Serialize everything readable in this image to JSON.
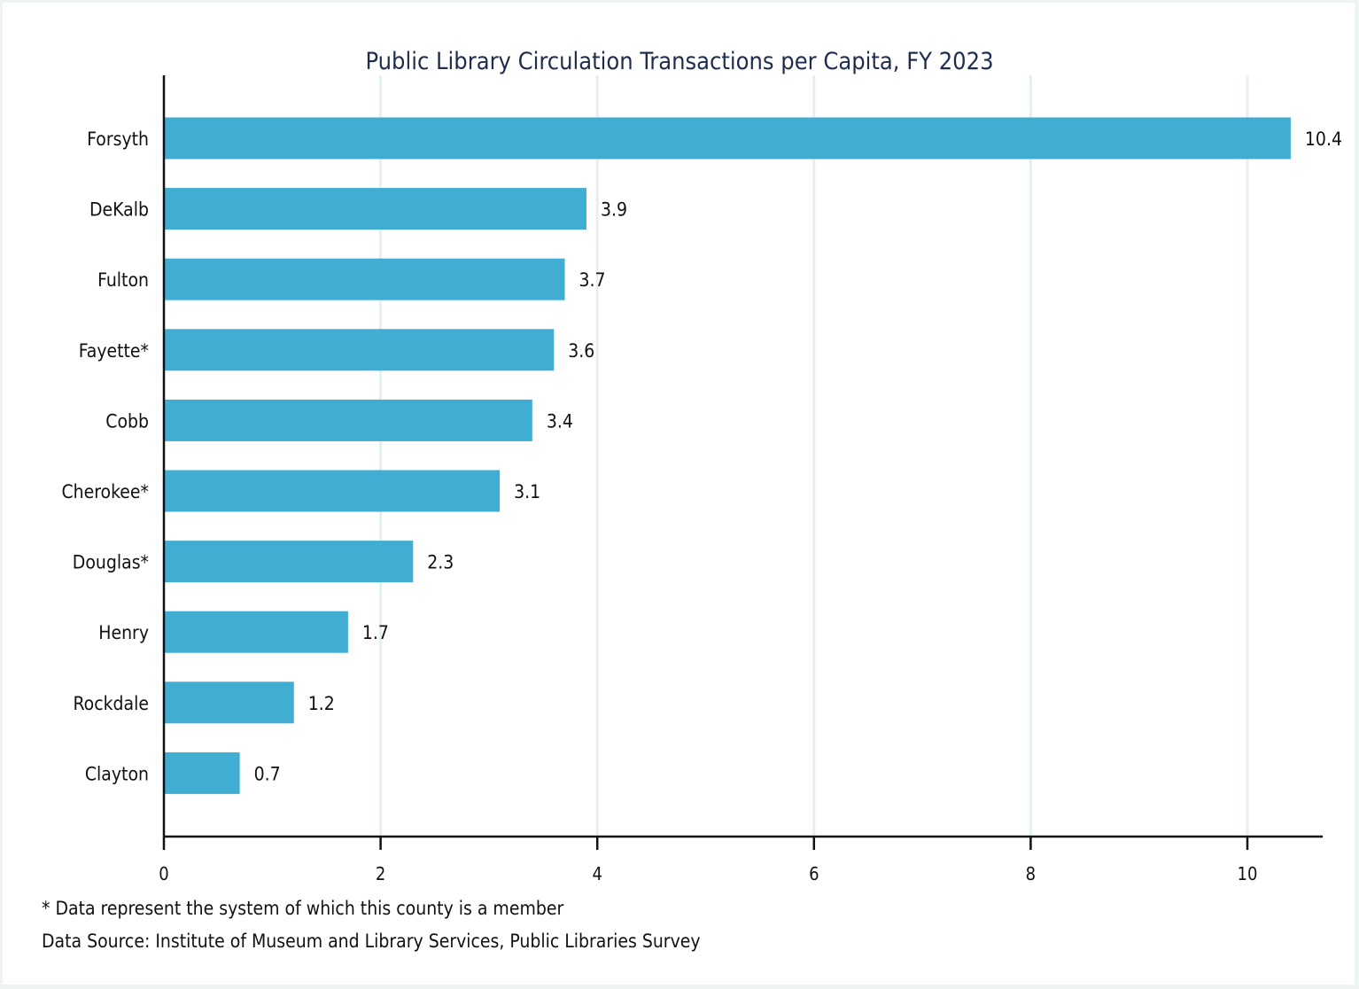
{
  "chart_data": {
    "type": "bar",
    "orientation": "horizontal",
    "title": "Public Library Circulation Transactions per Capita, FY 2023",
    "xlabel": "",
    "ylabel": "",
    "categories": [
      "Forsyth",
      "DeKalb",
      "Fulton",
      "Fayette*",
      "Cobb",
      "Cherokee*",
      "Douglas*",
      "Henry",
      "Rockdale",
      "Clayton"
    ],
    "values": [
      10.4,
      3.9,
      3.7,
      3.6,
      3.4,
      3.1,
      2.3,
      1.7,
      1.2,
      0.7
    ],
    "data_labels": [
      "10.4",
      "3.9",
      "3.7",
      "3.6",
      "3.4",
      "3.1",
      "2.3",
      "1.7",
      "1.2",
      "0.7"
    ],
    "xlim": [
      0,
      10.7
    ],
    "xticks": [
      0,
      2,
      4,
      6,
      8,
      10
    ],
    "xtick_labels": [
      "0",
      "2",
      "4",
      "6",
      "8",
      "10"
    ],
    "grid": "vertical",
    "legend": "none",
    "bar_color": "#42add3",
    "gridline_color": "#e6f0f1"
  },
  "footnotes": {
    "member_note": "* Data represent the system of which this county is a member",
    "source": "Data Source: Institute of Museum and Library Services, Public Libraries Survey"
  }
}
